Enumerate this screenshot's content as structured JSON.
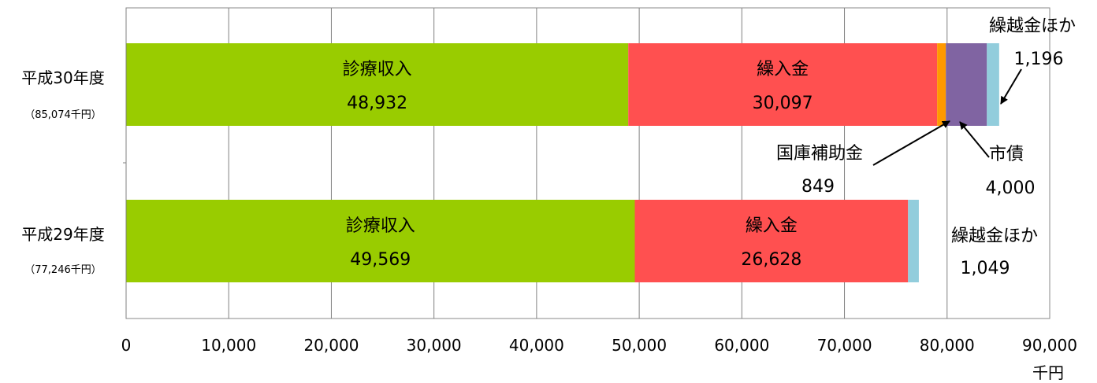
{
  "chart_data": {
    "type": "bar",
    "orientation": "horizontal",
    "stacked": true,
    "categories": [
      {
        "label": "平成30年度",
        "sublabel": "（85,074千円）"
      },
      {
        "label": "平成29年度",
        "sublabel": "（77,246千円）"
      }
    ],
    "series": [
      {
        "name": "診療収入",
        "color": "#99cc00",
        "values": [
          48932,
          49569
        ]
      },
      {
        "name": "繰入金",
        "color": "#ff5050",
        "values": [
          30097,
          26628
        ]
      },
      {
        "name": "国庫補助金",
        "color": "#ff9900",
        "values": [
          849,
          0
        ]
      },
      {
        "name": "市債",
        "color": "#8064a2",
        "values": [
          4000,
          0
        ]
      },
      {
        "name": "繰越金ほか",
        "color": "#92cddc",
        "values": [
          1196,
          1049
        ]
      }
    ],
    "segment_labels": [
      {
        "category": 0,
        "series": 0,
        "name": "診療収入",
        "value": "48,932"
      },
      {
        "category": 0,
        "series": 1,
        "name": "繰入金",
        "value": "30,097"
      },
      {
        "category": 1,
        "series": 0,
        "name": "診療収入",
        "value": "49,569"
      },
      {
        "category": 1,
        "series": 1,
        "name": "繰入金",
        "value": "26,628"
      }
    ],
    "annotations": [
      {
        "category": 0,
        "series": 4,
        "name": "繰越金ほか",
        "value": "1,196",
        "arrow": true
      },
      {
        "category": 0,
        "series": 2,
        "name": "国庫補助金",
        "value": "849",
        "arrow": true
      },
      {
        "category": 0,
        "series": 3,
        "name": "市債",
        "value": "4,000",
        "arrow": true
      },
      {
        "category": 1,
        "series": 4,
        "name": "繰越金ほか",
        "value": "1,049",
        "arrow": false
      }
    ],
    "xlim": [
      0,
      90000
    ],
    "xticks": [
      0,
      10000,
      20000,
      30000,
      40000,
      50000,
      60000,
      70000,
      80000,
      90000
    ],
    "xtick_labels": [
      "0",
      "10,000",
      "20,000",
      "30,000",
      "40,000",
      "50,000",
      "60,000",
      "70,000",
      "80,000",
      "90,000"
    ],
    "xunit": "千円",
    "grid": true,
    "legend": "none"
  }
}
